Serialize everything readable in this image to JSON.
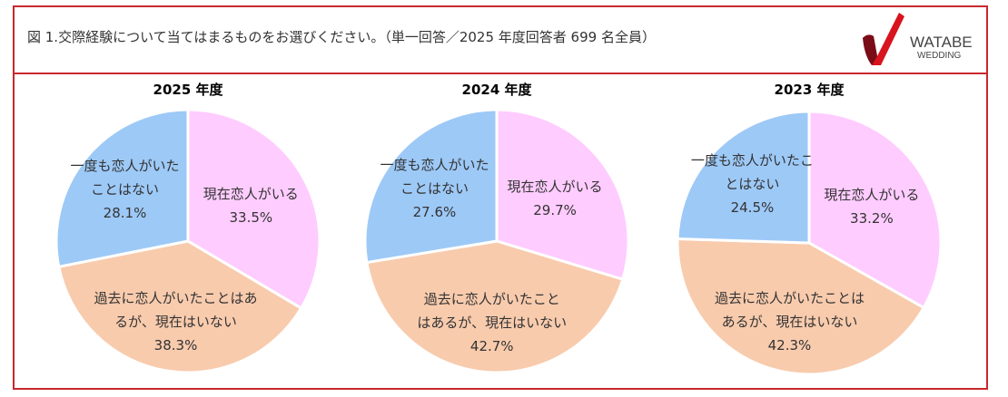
{
  "header": {
    "title": "図 1.交際経験について当てはまるものをお選びください。（単一回答／2025 年度回答者 699 名全員）",
    "logo": "WATABE WEDDING",
    "logo_main": "WATABE",
    "logo_sub": "WEDDING"
  },
  "colors": {
    "current": "#FFCCFF",
    "past": "#F8CBAD",
    "never": "#9DC9F7",
    "border": "#c8282e"
  },
  "chart_data": [
    {
      "type": "pie",
      "title": "2025 年度",
      "slices": [
        {
          "label": "現在恋人がいる",
          "value": 33.5,
          "lines": [
            "現在恋人がいる",
            "33.5%"
          ],
          "color": "#FFCCFF"
        },
        {
          "label": "過去に恋人がいたことはあるが、現在はいない",
          "value": 38.3,
          "lines": [
            "過去に恋人がいたことはあ",
            "るが、現在はいない",
            "38.3%"
          ],
          "color": "#F8CBAD"
        },
        {
          "label": "一度も恋人がいたことはない",
          "value": 28.1,
          "lines": [
            "一度も恋人がいた",
            "ことはない",
            "28.1%"
          ],
          "color": "#9DC9F7"
        }
      ]
    },
    {
      "type": "pie",
      "title": "2024 年度",
      "slices": [
        {
          "label": "現在恋人がいる",
          "value": 29.7,
          "lines": [
            "現在恋人がいる",
            "29.7%"
          ],
          "color": "#FFCCFF"
        },
        {
          "label": "過去に恋人がいたことはあるが、現在はいない",
          "value": 42.7,
          "lines": [
            "過去に恋人がいたこと",
            "はあるが、現在はいない",
            "42.7%"
          ],
          "color": "#F8CBAD"
        },
        {
          "label": "一度も恋人がいたことはない",
          "value": 27.6,
          "lines": [
            "一度も恋人がいた",
            "ことはない",
            "27.6%"
          ],
          "color": "#9DC9F7"
        }
      ]
    },
    {
      "type": "pie",
      "title": "2023 年度",
      "slices": [
        {
          "label": "現在恋人がいる",
          "value": 33.2,
          "lines": [
            "現在恋人がいる",
            "33.2%"
          ],
          "color": "#FFCCFF"
        },
        {
          "label": "過去に恋人がいたことはあるが、現在はいない",
          "value": 42.3,
          "lines": [
            "過去に恋人がいたことは",
            "あるが、現在はいない",
            "42.3%"
          ],
          "color": "#F8CBAD"
        },
        {
          "label": "一度も恋人がいたことはない",
          "value": 24.5,
          "lines": [
            "一度も恋人がいたこ",
            "とはない",
            "24.5%"
          ],
          "color": "#9DC9F7"
        }
      ]
    }
  ]
}
